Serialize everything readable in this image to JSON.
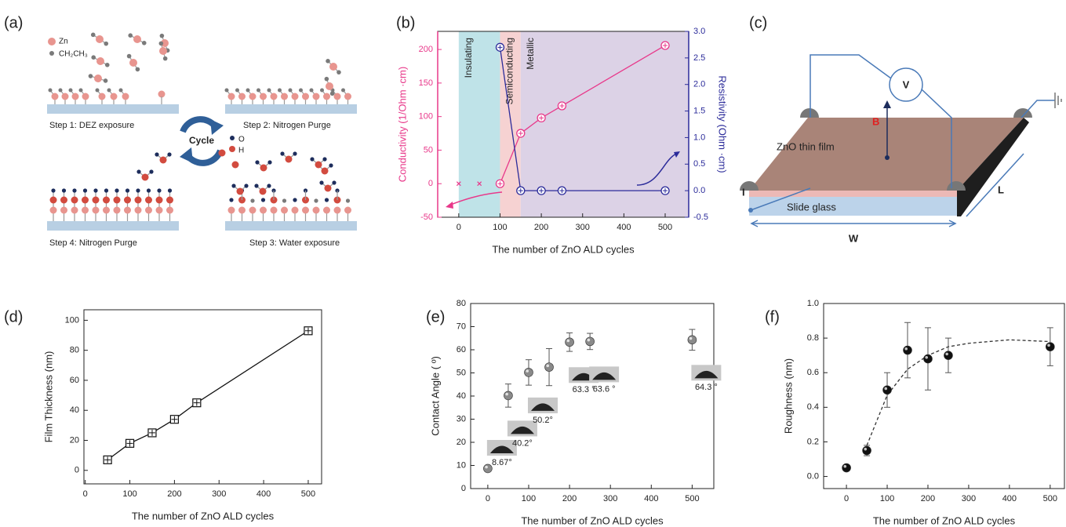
{
  "diagrams": {
    "a": {
      "panel": "(a)",
      "zn": "Zn",
      "ethyl": "CH₂CH₃",
      "o": "O",
      "h": "H",
      "cycle": "Cycle",
      "steps": [
        "Step 1: DEZ exposure",
        "Step 2: Nitrogen Purge",
        "Step 3: Water exposure",
        "Step 4: Nitrogen Purge"
      ]
    },
    "c": {
      "panel": "(c)",
      "voltage": "V",
      "field": "B",
      "film": "ZnO thin film",
      "current": "I",
      "length": "L",
      "substrate": "Slide glass",
      "width": "W"
    }
  },
  "chart_data": [
    {
      "type": "line",
      "panel": "(b)",
      "xlabel": "The number of ZnO ALD cycles",
      "ylabel": "Conductivity (1/Ohm ·cm)",
      "y2label": "Resistivity (Ohm ·cm)",
      "ycolor": "#e8388a",
      "y2color": "#2b2b9a",
      "xlim": [
        -51,
        557
      ],
      "xticks": [
        0,
        100,
        200,
        300,
        400,
        500
      ],
      "ylim": [
        -50,
        227
      ],
      "yticks": [
        -50,
        0,
        50,
        100,
        150,
        200
      ],
      "y2lim": [
        -0.5,
        3.0
      ],
      "y2ticks": [
        -0.5,
        {
          "value": 0,
          "label": "0.0"
        },
        0.5,
        {
          "value": 1,
          "label": "1.0"
        },
        1.5,
        {
          "value": 2,
          "label": "2.0"
        },
        2.5,
        {
          "value": 3,
          "label": "3.0"
        }
      ],
      "regions": [
        {
          "label": "Insulating",
          "start": 0,
          "end": 100,
          "color": "#bfe3e8"
        },
        {
          "label": "Semiconducting",
          "start": 100,
          "end": 150,
          "color": "#f6d2d2"
        },
        {
          "label": "Metallic",
          "start": 150,
          "color": "#dcd2e6"
        }
      ],
      "series": [
        {
          "color": "#e8388a",
          "marker": "circle-plus",
          "x": [
            100,
            150,
            200,
            250,
            500
          ],
          "values": [
            0,
            75,
            98,
            116,
            206
          ]
        },
        {
          "color": "#e8388a",
          "marker": "x",
          "line": false,
          "x": [
            0,
            50
          ],
          "values": [
            0,
            0
          ]
        },
        {
          "color": "#2b2b9a",
          "marker": "circle-plus",
          "axis": "y2",
          "x": [
            100,
            150,
            200,
            250,
            500
          ],
          "values": [
            2.7,
            0,
            0,
            0,
            0
          ]
        }
      ]
    },
    {
      "type": "line",
      "panel": "(d)",
      "xlabel": "The number of ZnO ALD cycles",
      "ylabel": "Film Thickness (nm)",
      "xlim": [
        -3,
        530
      ],
      "xticks": [
        0,
        100,
        200,
        300,
        400,
        500
      ],
      "ylim": [
        -9,
        107
      ],
      "yticks": [
        0,
        20,
        40,
        60,
        80,
        100
      ],
      "series": [
        {
          "color": "#111111",
          "marker": "square-plus",
          "x": [
            50,
            100,
            150,
            200,
            250,
            500
          ],
          "values": [
            7,
            18,
            25,
            34,
            45,
            93
          ]
        }
      ]
    },
    {
      "type": "scatter",
      "panel": "(e)",
      "xlabel": "The number of ZnO ALD cycles",
      "ylabel": "Contact Angle ( º)",
      "xlim": [
        -42,
        553
      ],
      "xticks": [
        0,
        100,
        200,
        300,
        400,
        500
      ],
      "ylim": [
        0,
        80
      ],
      "yticks": [
        0,
        10,
        20,
        30,
        40,
        50,
        60,
        70,
        80
      ],
      "series": [
        {
          "color": "#8a8a8a",
          "marker": "ball",
          "line": false,
          "x": [
            0,
            50,
            100,
            150,
            200,
            250,
            500
          ],
          "values": [
            8.67,
            40.2,
            50.2,
            52.5,
            63.3,
            63.6,
            64.3
          ],
          "errors": [
            1,
            5,
            5.5,
            8,
            4,
            3.5,
            4.5
          ],
          "value_labels": [
            "8.67°",
            "40.2°",
            "50.2°",
            null,
            "63.3 °",
            "63.6 °",
            "64.3 °"
          ]
        }
      ]
    },
    {
      "type": "scatter",
      "panel": "(f)",
      "xlabel": "The number of ZnO ALD cycles",
      "ylabel": "Roughness (nm)",
      "xlim": [
        -56,
        535
      ],
      "xticks": [
        0,
        100,
        200,
        300,
        400,
        500
      ],
      "ylim": [
        -0.07,
        1.0
      ],
      "yticks": [
        {
          "value": 0,
          "label": "0.0"
        },
        0.2,
        0.4,
        0.6,
        0.8,
        {
          "value": 1,
          "label": "1.0"
        }
      ],
      "series": [
        {
          "color": "#333333",
          "marker": "none",
          "dash": true,
          "x": [
            45,
            100,
            150,
            200,
            250,
            300,
            400,
            500
          ],
          "values": [
            0.15,
            0.47,
            0.62,
            0.7,
            0.75,
            0.77,
            0.79,
            0.78
          ]
        },
        {
          "color": "#111111",
          "marker": "ball",
          "line": false,
          "x": [
            0,
            50,
            100,
            150,
            200,
            250,
            500
          ],
          "values": [
            0.05,
            0.15,
            0.5,
            0.73,
            0.68,
            0.7,
            0.75
          ],
          "errors": [
            0,
            0.03,
            0.1,
            0.16,
            0.18,
            0.1,
            0.11
          ]
        }
      ]
    }
  ]
}
